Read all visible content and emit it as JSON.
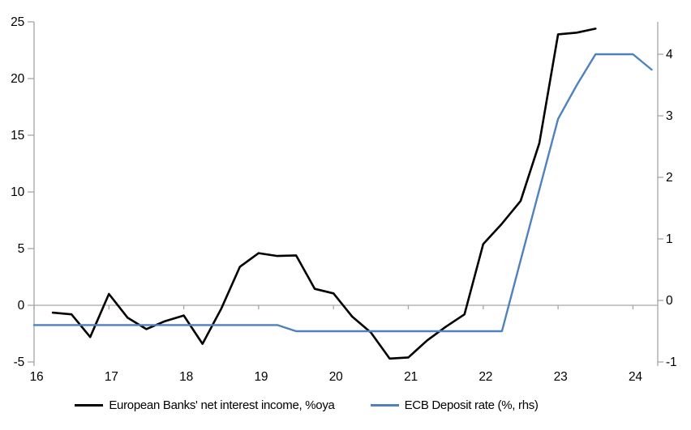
{
  "chart_data": {
    "type": "line",
    "legend_position": "bottom",
    "grid": "zero-line-only",
    "x_axis": {
      "tick_labels": [
        "16",
        "17",
        "18",
        "19",
        "20",
        "21",
        "22",
        "23",
        "24"
      ],
      "tick_values": [
        16,
        17,
        18,
        19,
        20,
        21,
        22,
        23,
        24
      ],
      "range": [
        16,
        24.33
      ]
    },
    "left_axis": {
      "tick_labels": [
        "25",
        "20",
        "15",
        "10",
        "5",
        "0",
        "-5"
      ],
      "tick_values": [
        25,
        20,
        15,
        10,
        5,
        0,
        -5
      ],
      "range": [
        -5,
        25
      ]
    },
    "right_axis": {
      "tick_labels": [
        "4",
        "3",
        "2",
        "1",
        "0",
        "-1"
      ],
      "tick_values": [
        4,
        3,
        2,
        1,
        0,
        -1
      ],
      "range": [
        -1,
        4.53
      ]
    },
    "series": [
      {
        "name": "European Banks' net interest income, %oya",
        "axis": "left",
        "color": "#000000",
        "x": [
          16.25,
          16.5,
          16.75,
          17,
          17.25,
          17.5,
          17.75,
          18,
          18.25,
          18.5,
          18.75,
          19,
          19.25,
          19.5,
          19.75,
          20,
          20.25,
          20.5,
          20.75,
          21,
          21.25,
          21.5,
          21.75,
          22,
          22.25,
          22.5,
          22.75,
          23,
          23.25,
          23.5
        ],
        "values": [
          -0.65,
          -0.8,
          -2.8,
          1.0,
          -1.1,
          -2.1,
          -1.4,
          -0.9,
          -3.4,
          -0.3,
          3.4,
          4.6,
          4.35,
          4.4,
          1.45,
          1.05,
          -1.0,
          -2.4,
          -4.7,
          -4.6,
          -3.1,
          -1.9,
          -0.8,
          5.4,
          7.2,
          9.2,
          14.3,
          23.9,
          24.05,
          24.4
        ]
      },
      {
        "name": "ECB Deposit rate (%, rhs)",
        "axis": "right",
        "color": "#4f81bd",
        "x": [
          16,
          16.25,
          16.5,
          16.75,
          17,
          17.25,
          17.5,
          17.75,
          18,
          18.25,
          18.5,
          18.75,
          19,
          19.25,
          19.5,
          19.75,
          20,
          20.25,
          20.5,
          20.75,
          21,
          21.25,
          21.5,
          21.75,
          22,
          22.25,
          22.5,
          22.75,
          23,
          23.25,
          23.5,
          23.75,
          24,
          24.25
        ],
        "values": [
          -0.4,
          -0.4,
          -0.4,
          -0.4,
          -0.4,
          -0.4,
          -0.4,
          -0.4,
          -0.4,
          -0.4,
          -0.4,
          -0.4,
          -0.4,
          -0.4,
          -0.5,
          -0.5,
          -0.5,
          -0.5,
          -0.5,
          -0.5,
          -0.5,
          -0.5,
          -0.5,
          -0.5,
          -0.5,
          -0.5,
          0.65,
          1.8,
          2.95,
          3.5,
          4.0,
          4.0,
          4.0,
          3.75
        ]
      }
    ],
    "colors": {
      "axis_line": "#a6a6a6",
      "tick_text": "#000000",
      "background": "#ffffff"
    }
  }
}
